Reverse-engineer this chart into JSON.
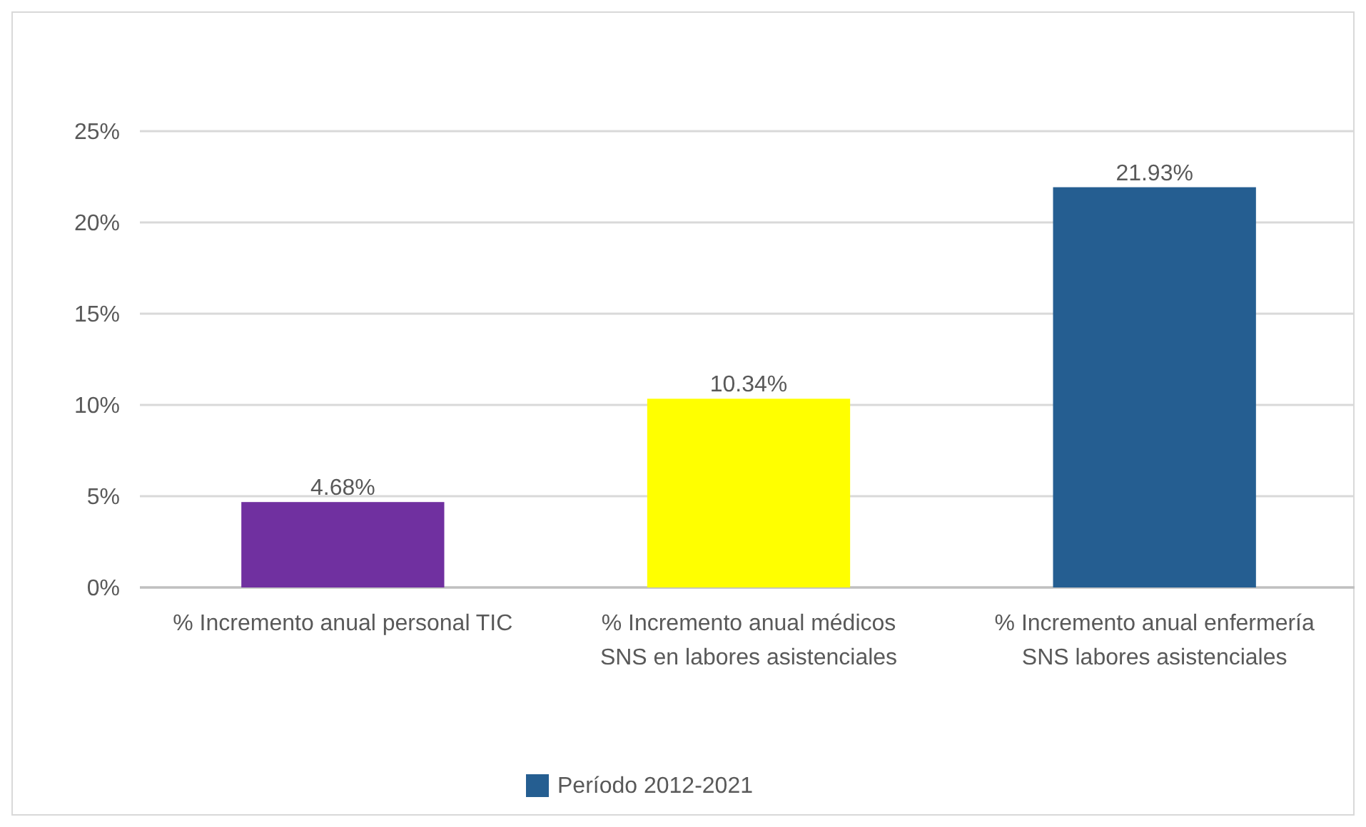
{
  "chart_data": {
    "type": "bar",
    "categories": [
      "% Incremento anual personal TIC",
      "% Incremento anual médicos SNS en labores asistenciales",
      "% Incremento anual enfermería SNS labores asistenciales"
    ],
    "series": [
      {
        "name": "Período 2012-2021",
        "color": "#255e91",
        "colors": [
          "#7030a0",
          "#ffff00",
          "#255e91"
        ],
        "values": [
          4.68,
          10.34,
          21.93
        ],
        "value_labels": [
          "4.68%",
          "10.34%",
          "21.93%"
        ]
      }
    ],
    "ylim": [
      0,
      25
    ],
    "yticks": [
      {
        "value": 0,
        "label": "0%"
      },
      {
        "value": 5,
        "label": "5%"
      },
      {
        "value": 10,
        "label": "10%"
      },
      {
        "value": 15,
        "label": "15%"
      },
      {
        "value": 20,
        "label": "20%"
      },
      {
        "value": 25,
        "label": "25%"
      }
    ],
    "grid": "y",
    "legend": "bottom"
  }
}
